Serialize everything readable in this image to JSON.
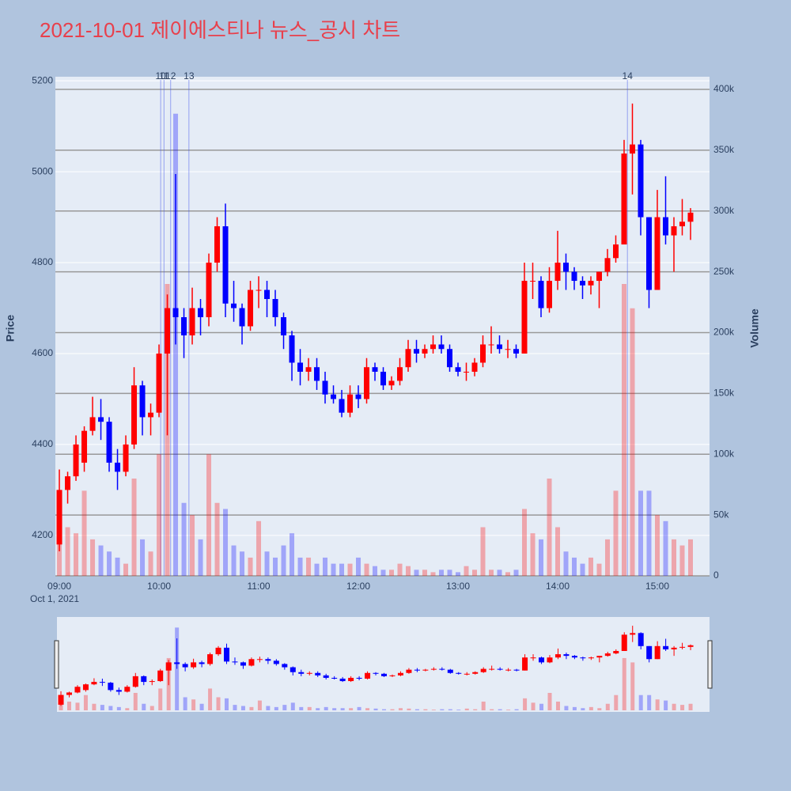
{
  "chart_data": {
    "type": "candlestick",
    "title": "2021-10-01 제이에스티나 뉴스_공시 차트",
    "y_label": "Price",
    "y2_label": "Volume",
    "x_date_label": "Oct 1, 2021",
    "increasing_color": "#ff0000",
    "decreasing_color": "#0000ff",
    "grid": true,
    "x": [
      "2021-10-01 09:00",
      "2021-10-01 09:05",
      "2021-10-01 09:10",
      "2021-10-01 09:15",
      "2021-10-01 09:20",
      "2021-10-01 09:25",
      "2021-10-01 09:30",
      "2021-10-01 09:35",
      "2021-10-01 09:40",
      "2021-10-01 09:45",
      "2021-10-01 09:50",
      "2021-10-01 09:55",
      "2021-10-01 10:00",
      "2021-10-01 10:05",
      "2021-10-01 10:10",
      "2021-10-01 10:15",
      "2021-10-01 10:20",
      "2021-10-01 10:25",
      "2021-10-01 10:30",
      "2021-10-01 10:35",
      "2021-10-01 10:40",
      "2021-10-01 10:45",
      "2021-10-01 10:50",
      "2021-10-01 10:55",
      "2021-10-01 11:00",
      "2021-10-01 11:05",
      "2021-10-01 11:10",
      "2021-10-01 11:15",
      "2021-10-01 11:20",
      "2021-10-01 11:25",
      "2021-10-01 11:30",
      "2021-10-01 11:35",
      "2021-10-01 11:40",
      "2021-10-01 11:45",
      "2021-10-01 11:50",
      "2021-10-01 11:55",
      "2021-10-01 12:00",
      "2021-10-01 12:05",
      "2021-10-01 12:10",
      "2021-10-01 12:15",
      "2021-10-01 12:20",
      "2021-10-01 12:25",
      "2021-10-01 12:30",
      "2021-10-01 12:35",
      "2021-10-01 12:40",
      "2021-10-01 12:45",
      "2021-10-01 12:50",
      "2021-10-01 12:55",
      "2021-10-01 13:00",
      "2021-10-01 13:05",
      "2021-10-01 13:10",
      "2021-10-01 13:15",
      "2021-10-01 13:20",
      "2021-10-01 13:25",
      "2021-10-01 13:30",
      "2021-10-01 13:35",
      "2021-10-01 13:40",
      "2021-10-01 13:45",
      "2021-10-01 13:50",
      "2021-10-01 13:55",
      "2021-10-01 14:00",
      "2021-10-01 14:05",
      "2021-10-01 14:10",
      "2021-10-01 14:15",
      "2021-10-01 14:20",
      "2021-10-01 14:25",
      "2021-10-01 14:30",
      "2021-10-01 14:35",
      "2021-10-01 14:40",
      "2021-10-01 14:45",
      "2021-10-01 14:50",
      "2021-10-01 14:55",
      "2021-10-01 15:00",
      "2021-10-01 15:05",
      "2021-10-01 15:10",
      "2021-10-01 15:15",
      "2021-10-01 15:20"
    ],
    "open": [
      4180,
      4300,
      4330,
      4360,
      4430,
      4460,
      4450,
      4360,
      4340,
      4400,
      4530,
      4460,
      4470,
      4600,
      4700,
      4680,
      4640,
      4700,
      4680,
      4800,
      4880,
      4710,
      4700,
      4660,
      4740,
      4740,
      4720,
      4680,
      4640,
      4580,
      4560,
      4570,
      4540,
      4510,
      4500,
      4470,
      4510,
      4500,
      4570,
      4560,
      4530,
      4540,
      4570,
      4610,
      4600,
      4610,
      4620,
      4610,
      4570,
      4560,
      4560,
      4580,
      4620,
      4620,
      4610,
      4610,
      4600,
      4760,
      4760,
      4700,
      4760,
      4800,
      4780,
      4760,
      4750,
      4760,
      4780,
      4810,
      4840,
      5040,
      5060,
      4900,
      4740,
      4900,
      4860,
      4880,
      4890
    ],
    "high": [
      4345,
      4340,
      4420,
      4440,
      4505,
      4500,
      4460,
      4390,
      4420,
      4570,
      4540,
      4490,
      4620,
      4730,
      4995,
      4700,
      4745,
      4720,
      4820,
      4900,
      4930,
      4760,
      4710,
      4760,
      4770,
      4760,
      4740,
      4690,
      4650,
      4610,
      4590,
      4590,
      4560,
      4530,
      4520,
      4530,
      4530,
      4590,
      4580,
      4570,
      4550,
      4590,
      4630,
      4630,
      4620,
      4640,
      4640,
      4620,
      4580,
      4580,
      4590,
      4640,
      4660,
      4640,
      4630,
      4620,
      4800,
      4800,
      4770,
      4790,
      4870,
      4820,
      4790,
      4770,
      4770,
      4780,
      4830,
      4860,
      5070,
      5150,
      5070,
      4900,
      4960,
      4990,
      4900,
      4940,
      4920
    ],
    "low": [
      4165,
      4270,
      4320,
      4340,
      4420,
      4410,
      4340,
      4300,
      4330,
      4390,
      4420,
      4420,
      4460,
      4420,
      4620,
      4590,
      4620,
      4640,
      4660,
      4780,
      4680,
      4670,
      4620,
      4650,
      4700,
      4680,
      4660,
      4610,
      4540,
      4530,
      4540,
      4520,
      4490,
      4490,
      4460,
      4460,
      4480,
      4490,
      4540,
      4520,
      4520,
      4530,
      4560,
      4580,
      4590,
      4600,
      4600,
      4560,
      4550,
      4540,
      4550,
      4570,
      4600,
      4600,
      4590,
      4590,
      4600,
      4720,
      4680,
      4690,
      4740,
      4740,
      4740,
      4720,
      4730,
      4700,
      4770,
      4800,
      4840,
      4950,
      4860,
      4700,
      4740,
      4840,
      4780,
      4860,
      4850
    ],
    "close": [
      4300,
      4330,
      4400,
      4430,
      4460,
      4450,
      4360,
      4340,
      4400,
      4530,
      4460,
      4470,
      4600,
      4700,
      4680,
      4640,
      4700,
      4680,
      4800,
      4880,
      4710,
      4700,
      4660,
      4740,
      4740,
      4720,
      4680,
      4640,
      4580,
      4560,
      4570,
      4540,
      4510,
      4500,
      4470,
      4510,
      4500,
      4570,
      4560,
      4530,
      4540,
      4570,
      4610,
      4600,
      4610,
      4620,
      4610,
      4570,
      4560,
      4560,
      4580,
      4620,
      4620,
      4610,
      4610,
      4600,
      4760,
      4760,
      4700,
      4760,
      4800,
      4780,
      4760,
      4750,
      4760,
      4780,
      4810,
      4840,
      5040,
      5060,
      4900,
      4740,
      4900,
      4860,
      4880,
      4890,
      4910
    ],
    "volume": [
      45000,
      40000,
      35000,
      70000,
      30000,
      25000,
      20000,
      15000,
      10000,
      80000,
      30000,
      20000,
      100000,
      240000,
      380000,
      60000,
      50000,
      30000,
      100000,
      60000,
      55000,
      25000,
      20000,
      15000,
      45000,
      20000,
      15000,
      25000,
      35000,
      15000,
      15000,
      10000,
      15000,
      10000,
      10000,
      10000,
      15000,
      10000,
      8000,
      5000,
      5000,
      10000,
      8000,
      5000,
      5000,
      3000,
      5000,
      5000,
      3000,
      8000,
      5000,
      40000,
      5000,
      5000,
      3000,
      5000,
      55000,
      35000,
      30000,
      80000,
      40000,
      20000,
      15000,
      10000,
      15000,
      10000,
      30000,
      70000,
      240000,
      220000,
      70000,
      70000,
      50000,
      45000,
      30000,
      25000,
      30000
    ],
    "xlim": [
      "2021-10-01 08:57:36",
      "2021-10-01 15:31:26"
    ],
    "xticks": [
      {
        "value": "2021-10-01 09:00",
        "label": "09:00"
      },
      {
        "value": "2021-10-01 10:00",
        "label": "10:00"
      },
      {
        "value": "2021-10-01 11:00",
        "label": "11:00"
      },
      {
        "value": "2021-10-01 12:00",
        "label": "12:00"
      },
      {
        "value": "2021-10-01 13:00",
        "label": "13:00"
      },
      {
        "value": "2021-10-01 14:00",
        "label": "14:00"
      },
      {
        "value": "2021-10-01 15:00",
        "label": "15:00"
      }
    ],
    "ylim": [
      4111,
      5209
    ],
    "yticks": [
      4200,
      4400,
      4600,
      4800,
      5000,
      5200
    ],
    "y2lim": [
      0,
      410400
    ],
    "y2ticks": [
      0,
      {
        "value": 50000,
        "label": "50k"
      },
      {
        "value": 100000,
        "label": "100k"
      },
      {
        "value": 150000,
        "label": "150k"
      },
      {
        "value": 200000,
        "label": "200k"
      },
      {
        "value": 250000,
        "label": "250k"
      },
      {
        "value": 300000,
        "label": "300k"
      },
      {
        "value": 350000,
        "label": "350k"
      },
      {
        "value": 400000,
        "label": "400k"
      }
    ],
    "annotations": [
      {
        "x": "2021-10-01 10:01",
        "text": "10"
      },
      {
        "x": "2021-10-01 10:03",
        "text": "11"
      },
      {
        "x": "2021-10-01 10:07",
        "text": "12"
      },
      {
        "x": "2021-10-01 10:18",
        "text": "13"
      },
      {
        "x": "2021-10-01 14:42",
        "text": "14"
      }
    ]
  }
}
